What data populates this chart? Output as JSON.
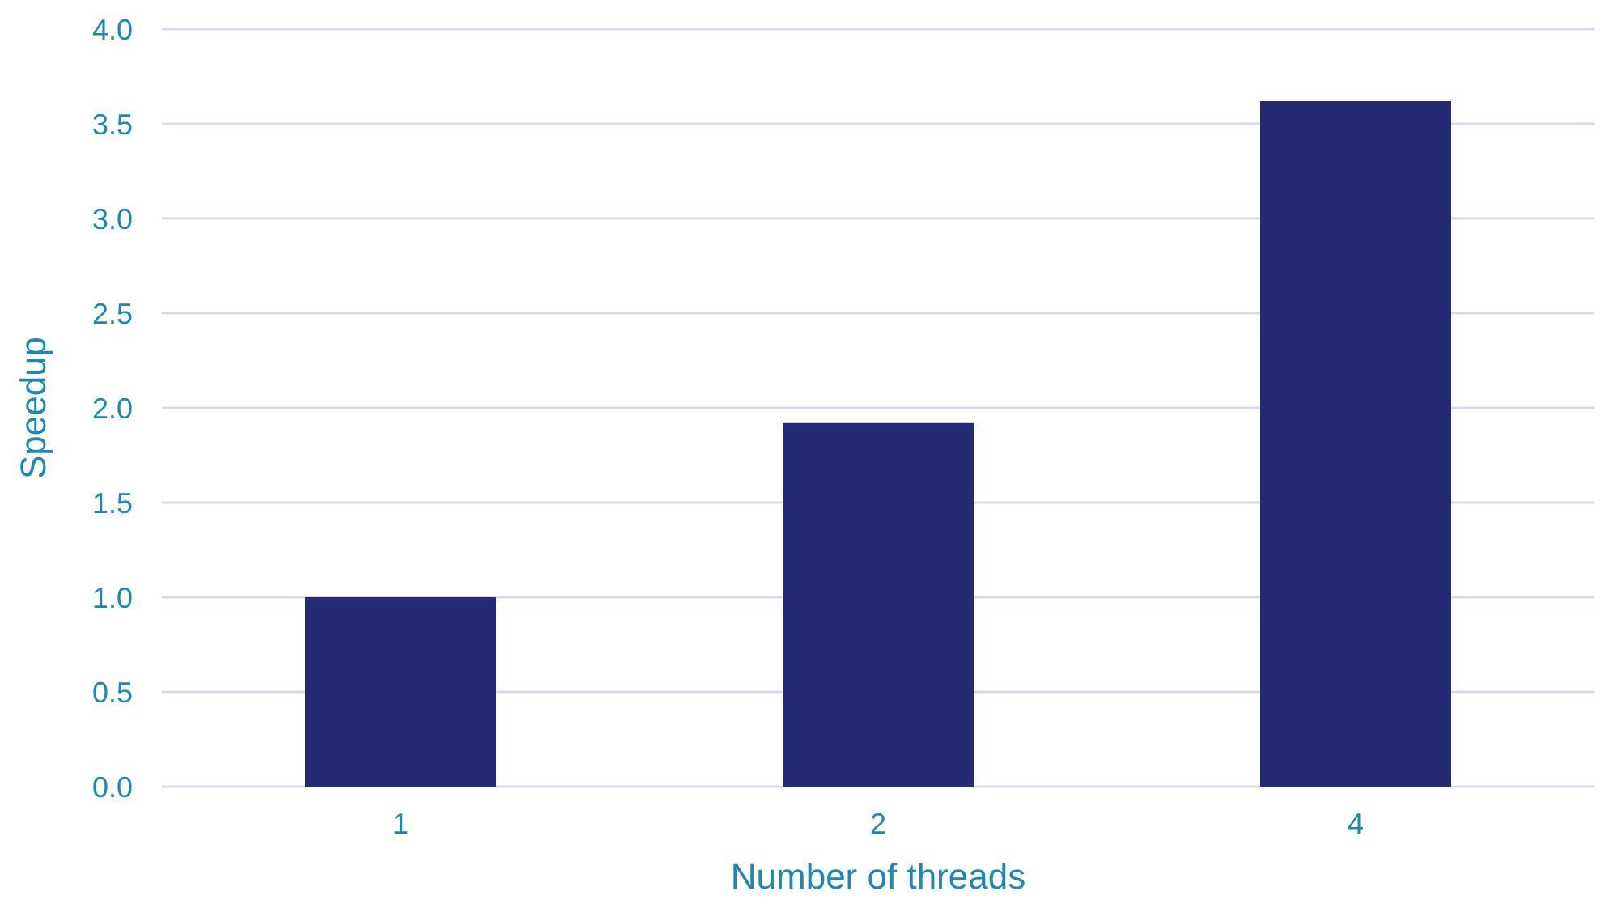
{
  "chart_data": {
    "type": "bar",
    "xlabel": "Number of threads",
    "ylabel": "Speedup",
    "categories": [
      "1",
      "2",
      "4"
    ],
    "values": [
      1.0,
      1.92,
      3.62
    ],
    "color": "#252a74",
    "ylim": [
      0,
      4
    ],
    "yticks": [
      {
        "value": 0,
        "label": "0.0"
      },
      {
        "value": 0.5,
        "label": "0.5"
      },
      {
        "value": 1,
        "label": "1.0"
      },
      {
        "value": 1.5,
        "label": "1.5"
      },
      {
        "value": 2,
        "label": "2.0"
      },
      {
        "value": 2.5,
        "label": "2.5"
      },
      {
        "value": 3,
        "label": "3.0"
      },
      {
        "value": 3.5,
        "label": "3.5"
      },
      {
        "value": 4,
        "label": "4.0"
      }
    ],
    "grid": "y",
    "legend": false
  }
}
